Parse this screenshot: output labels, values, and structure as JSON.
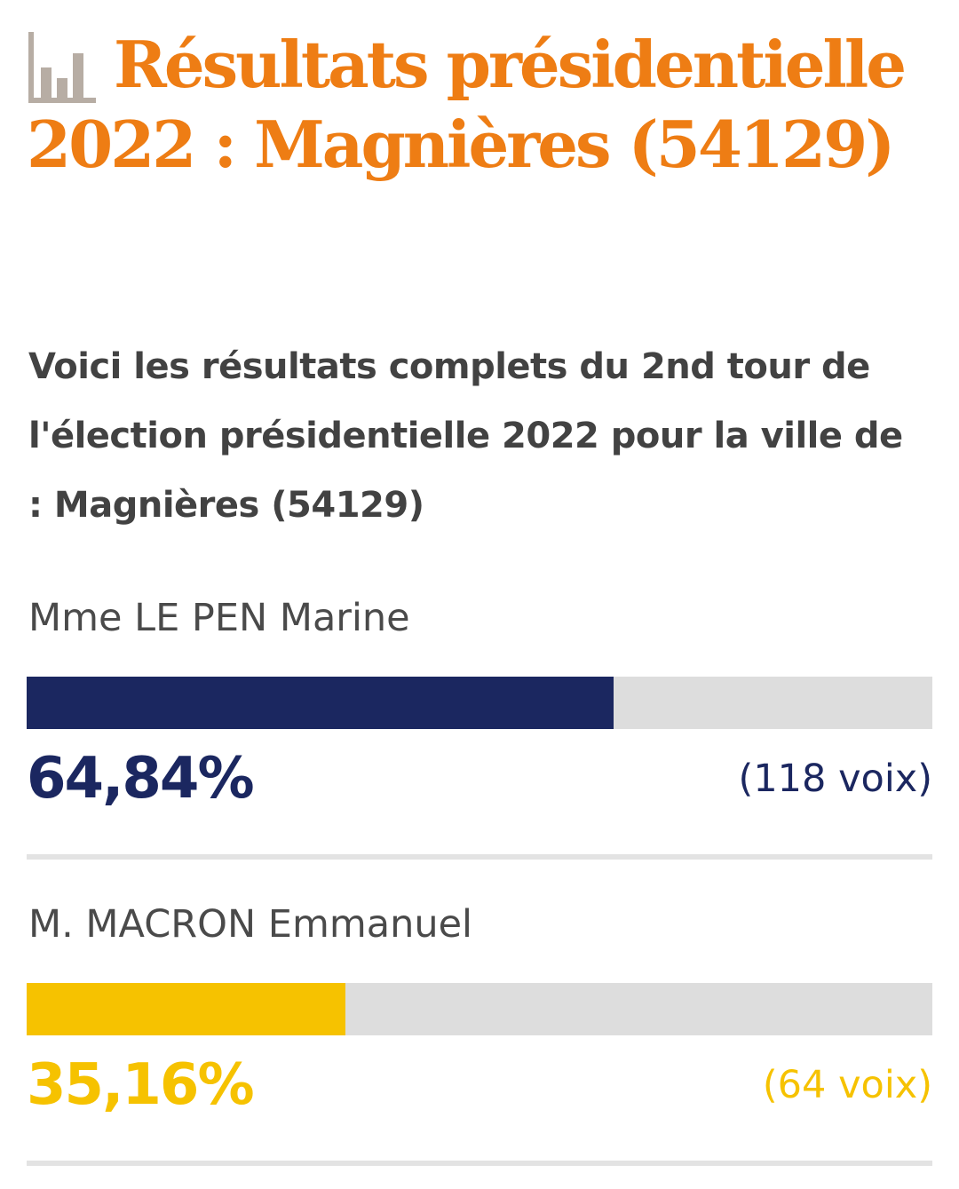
{
  "header": {
    "icon": "bar-chart-icon",
    "title": "Résultats présidentielle 2022 : Magnières (54129)",
    "title_color": "#ee7d14",
    "icon_color": "#b7ada4"
  },
  "intro": "Voici les résultats complets du 2nd tour de l'élection présidentielle 2022 pour la ville de : Magnières (54129)",
  "candidates": [
    {
      "name": "Mme LE PEN Marine",
      "percent": "64,84%",
      "share": 0.6484,
      "votes": "(118 voix)",
      "color": "#1b2760"
    },
    {
      "name": "M. MACRON Emmanuel",
      "percent": "35,16%",
      "share": 0.3516,
      "votes": "(64 voix)",
      "color": "#f6c200"
    }
  ],
  "colors": {
    "text": "#424242",
    "track": "#dddddd",
    "divider": "#e3e3e3"
  }
}
